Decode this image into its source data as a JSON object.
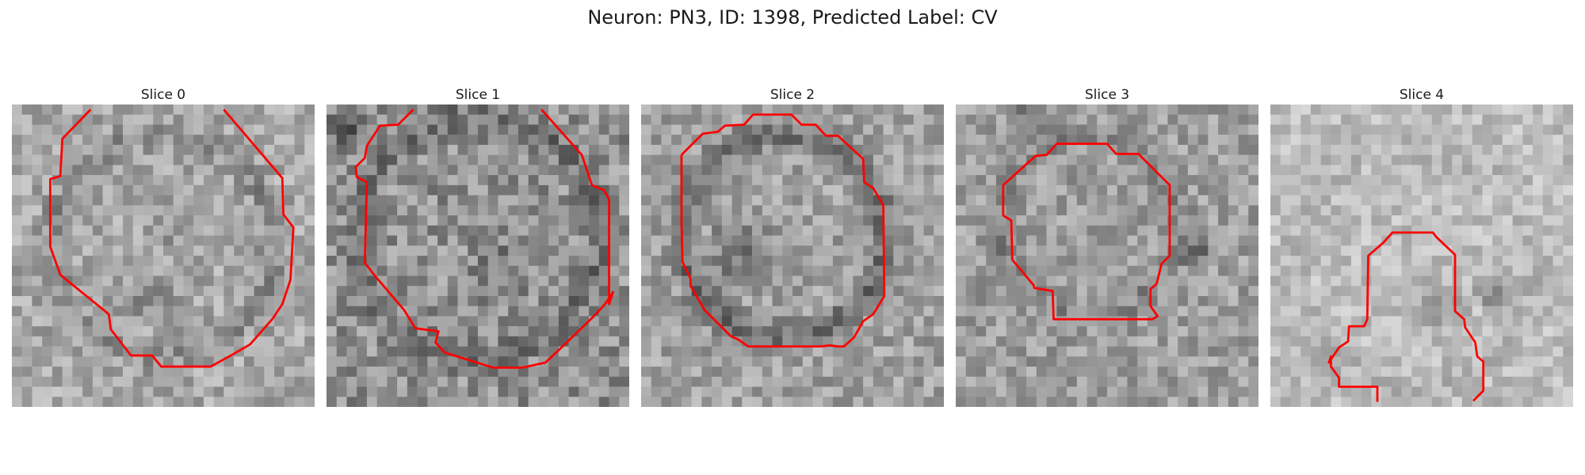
{
  "figure": {
    "title": "Neuron: PN3, ID: 1398, Predicted Label: CV"
  },
  "panels": [
    {
      "title": "Slice 0",
      "contour_color": "#ff0000"
    },
    {
      "title": "Slice 1",
      "contour_color": "#ff0000"
    },
    {
      "title": "Slice 2",
      "contour_color": "#ff0000"
    },
    {
      "title": "Slice 3",
      "contour_color": "#ff0000"
    },
    {
      "title": "Slice 4",
      "contour_color": "#ff0000"
    }
  ]
}
